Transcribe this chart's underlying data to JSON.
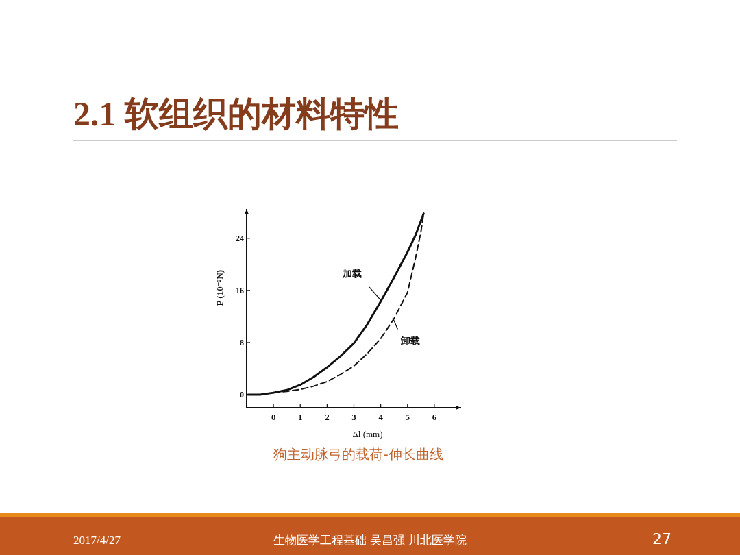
{
  "chart_data": {
    "type": "line",
    "title": "2.1 软组织的材料特性",
    "subtitle": "狗主动脉弓的载荷-伸长曲线",
    "xlabel": "Δl (mm)",
    "ylabel": "P (10⁻²N)",
    "xlim": [
      -1,
      7
    ],
    "ylim": [
      -2,
      28.5
    ],
    "xticks": [
      0,
      1,
      2,
      3,
      4,
      5,
      6
    ],
    "yticks": [
      0,
      8,
      16,
      24
    ],
    "grid": false,
    "marker": "none",
    "series": [
      {
        "color": "#111111",
        "line_style": "solid",
        "x": [
          -0.95,
          -0.5,
          0,
          0.5,
          1,
          1.5,
          2,
          2.5,
          3,
          3.5,
          4,
          4.5,
          5,
          5.3,
          5.6
        ],
        "values": [
          0,
          0,
          0.3,
          0.7,
          1.5,
          2.7,
          4.2,
          5.9,
          7.9,
          10.8,
          14.3,
          18,
          21.9,
          24.5,
          27.8
        ]
      },
      {
        "color": "#111111",
        "line_style": "dashed",
        "x": [
          0,
          0.5,
          1,
          1.5,
          2,
          2.5,
          3,
          3.5,
          4,
          4.5,
          5,
          5.3,
          5.5,
          5.6
        ],
        "values": [
          0.3,
          0.5,
          0.8,
          1.3,
          2.0,
          3.1,
          4.4,
          6.3,
          8.6,
          11.7,
          15.7,
          21,
          25,
          27.8
        ]
      }
    ],
    "annotations": [
      {
        "text": "加载",
        "x": 4.0,
        "y": 14.5
      },
      {
        "text": "卸载",
        "x": 4.45,
        "y": 11.8
      },
      "2017/4/27",
      "生物医学工程基础 吴昌强 川北医学院",
      "27"
    ]
  }
}
